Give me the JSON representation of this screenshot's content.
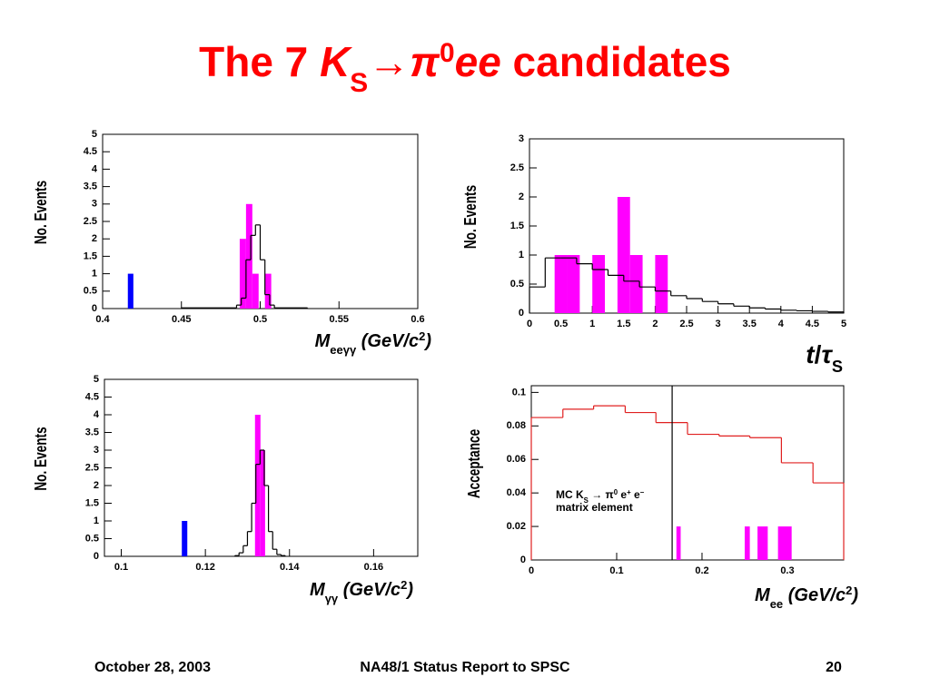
{
  "slide": {
    "title": [
      {
        "text": "The 7 ",
        "style": "n"
      },
      {
        "text": "K",
        "style": "i"
      },
      {
        "text": "S",
        "style": "sub"
      },
      {
        "text": "→",
        "style": "n"
      },
      {
        "text": "π",
        "style": "i"
      },
      {
        "text": "0",
        "style": "sup"
      },
      {
        "text": "ee",
        "style": "i"
      },
      {
        "text": " candidates",
        "style": "n"
      }
    ],
    "footer": {
      "date": "October 28, 2003",
      "report": "NA48/1 Status Report to SPSC",
      "page": "20"
    }
  },
  "chart_data": [
    {
      "type": "histogram",
      "ylabel": "No. Events",
      "xlabel": [
        {
          "text": "M",
          "style": "i"
        },
        {
          "text": "eeγγ",
          "style": "sub"
        },
        {
          "text": " (GeV/c",
          "style": "i"
        },
        {
          "text": "2",
          "style": "sup"
        },
        {
          "text": ")",
          "style": "i"
        }
      ],
      "xlim": [
        0.4,
        0.6
      ],
      "xticks": [
        0.4,
        0.45,
        0.5,
        0.55,
        0.6
      ],
      "ylim": [
        0,
        5
      ],
      "yticks": [
        0,
        0.5,
        1,
        1.5,
        2,
        2.5,
        3,
        3.5,
        4,
        4.5,
        5
      ],
      "series": [
        {
          "style": "filled",
          "color": "#0000ff",
          "bins": [
            0.416,
            0.4195
          ],
          "values": [
            1
          ]
        },
        {
          "style": "filled",
          "color": "#ff00ff",
          "bins": [
            0.487,
            0.491,
            0.495,
            0.499,
            0.503,
            0.507
          ],
          "values": [
            2,
            3,
            1,
            0,
            1
          ]
        },
        {
          "style": "step",
          "color": "#000000",
          "bins": [
            0.45,
            0.485,
            0.488,
            0.491,
            0.494,
            0.497,
            0.5,
            0.503,
            0.506,
            0.509,
            0.53
          ],
          "values": [
            0.02,
            0.1,
            0.3,
            1.4,
            2.1,
            2.4,
            1.4,
            0.4,
            0.1,
            0.02
          ]
        }
      ]
    },
    {
      "type": "histogram",
      "ylabel": "No. Events",
      "xlabel": [
        {
          "text": "t",
          "style": "i"
        },
        {
          "text": "/",
          "style": "n"
        },
        {
          "text": "τ",
          "style": "i"
        },
        {
          "text": "S",
          "style": "sub"
        }
      ],
      "xlim": [
        0,
        5
      ],
      "xticks": [
        0,
        0.5,
        1,
        1.5,
        2,
        2.5,
        3,
        3.5,
        4,
        4.5,
        5
      ],
      "ylim": [
        0,
        3
      ],
      "yticks": [
        0,
        0.5,
        1,
        1.5,
        2,
        2.5,
        3
      ],
      "series": [
        {
          "style": "filled",
          "color": "#ff00ff",
          "bins": [
            0.4,
            0.6,
            0.8,
            1.0,
            1.2,
            1.4,
            1.6,
            1.8,
            2.0,
            2.2
          ],
          "values": [
            1,
            1,
            0,
            1,
            0,
            2,
            1,
            0,
            1
          ]
        },
        {
          "style": "step",
          "color": "#000000",
          "bins": [
            0,
            0.25,
            0.5,
            0.75,
            1,
            1.25,
            1.5,
            1.75,
            2,
            2.25,
            2.5,
            2.75,
            3,
            3.25,
            3.5,
            3.75,
            4,
            4.25,
            4.5,
            4.75,
            5
          ],
          "values": [
            0.45,
            0.95,
            0.95,
            0.85,
            0.75,
            0.65,
            0.55,
            0.45,
            0.38,
            0.3,
            0.25,
            0.2,
            0.16,
            0.12,
            0.09,
            0.07,
            0.05,
            0.04,
            0.03,
            0.02
          ]
        }
      ]
    },
    {
      "type": "histogram",
      "ylabel": "No. Events",
      "xlabel": [
        {
          "text": "M",
          "style": "i"
        },
        {
          "text": "γγ",
          "style": "sub"
        },
        {
          "text": " (GeV/c",
          "style": "i"
        },
        {
          "text": "2",
          "style": "sup"
        },
        {
          "text": ")",
          "style": "i"
        }
      ],
      "xlim": [
        0.096,
        0.1705
      ],
      "xticks": [
        0.1,
        0.12,
        0.14,
        0.16
      ],
      "ylim": [
        0,
        5
      ],
      "yticks": [
        0,
        0.5,
        1,
        1.5,
        2,
        2.5,
        3,
        3.5,
        4,
        4.5,
        5
      ],
      "series": [
        {
          "style": "filled",
          "color": "#0000ff",
          "bins": [
            0.1144,
            0.1157
          ],
          "values": [
            1
          ]
        },
        {
          "style": "filled",
          "color": "#ff00ff",
          "bins": [
            0.1318,
            0.1331,
            0.1342
          ],
          "values": [
            4,
            3
          ]
        },
        {
          "style": "step",
          "color": "#000000",
          "bins": [
            0.127,
            0.128,
            0.129,
            0.13,
            0.131,
            0.132,
            0.133,
            0.134,
            0.135,
            0.136,
            0.137,
            0.138,
            0.139
          ],
          "values": [
            0.02,
            0.1,
            0.3,
            0.7,
            1.5,
            2.6,
            3.0,
            2.0,
            0.7,
            0.2,
            0.05,
            0.02
          ]
        }
      ]
    },
    {
      "type": "histogram",
      "ylabel": "Acceptance",
      "xlabel": [
        {
          "text": "M",
          "style": "i"
        },
        {
          "text": "ee",
          "style": "sub"
        },
        {
          "text": " (GeV/c",
          "style": "i"
        },
        {
          "text": "2",
          "style": "sup"
        },
        {
          "text": ")",
          "style": "i"
        }
      ],
      "xlim": [
        0,
        0.366
      ],
      "xticks": [
        0,
        0.1,
        0.2,
        0.3
      ],
      "ylim": [
        0,
        0.104
      ],
      "yticks": [
        0,
        0.02,
        0.04,
        0.06,
        0.08,
        0.1
      ],
      "vline": 0.165,
      "annotation": [
        [
          {
            "text": "MC K",
            "style": "n"
          },
          {
            "text": "S",
            "style": "sub"
          },
          {
            "text": " → π",
            "style": "n"
          },
          {
            "text": "0",
            "style": "sup"
          },
          {
            "text": " e",
            "style": "n"
          },
          {
            "text": "+",
            "style": "sup"
          },
          {
            "text": " e",
            "style": "n"
          },
          {
            "text": "−",
            "style": "sup"
          }
        ],
        [
          {
            "text": "matrix element",
            "style": "n"
          }
        ]
      ],
      "series": [
        {
          "style": "step",
          "color": "#e02020",
          "bins": [
            0,
            0.037,
            0.073,
            0.11,
            0.146,
            0.183,
            0.22,
            0.256,
            0.293,
            0.33,
            0.366
          ],
          "values": [
            0.085,
            0.09,
            0.092,
            0.088,
            0.082,
            0.075,
            0.074,
            0.073,
            0.058,
            0.046
          ]
        },
        {
          "style": "filled",
          "color": "#ff00ff",
          "bins": [
            0.17,
            0.175,
            0.25,
            0.256,
            0.265,
            0.277,
            0.289,
            0.305
          ],
          "values": [
            0.02,
            0,
            0.02,
            0,
            0.02,
            0,
            0.02
          ]
        }
      ]
    }
  ]
}
